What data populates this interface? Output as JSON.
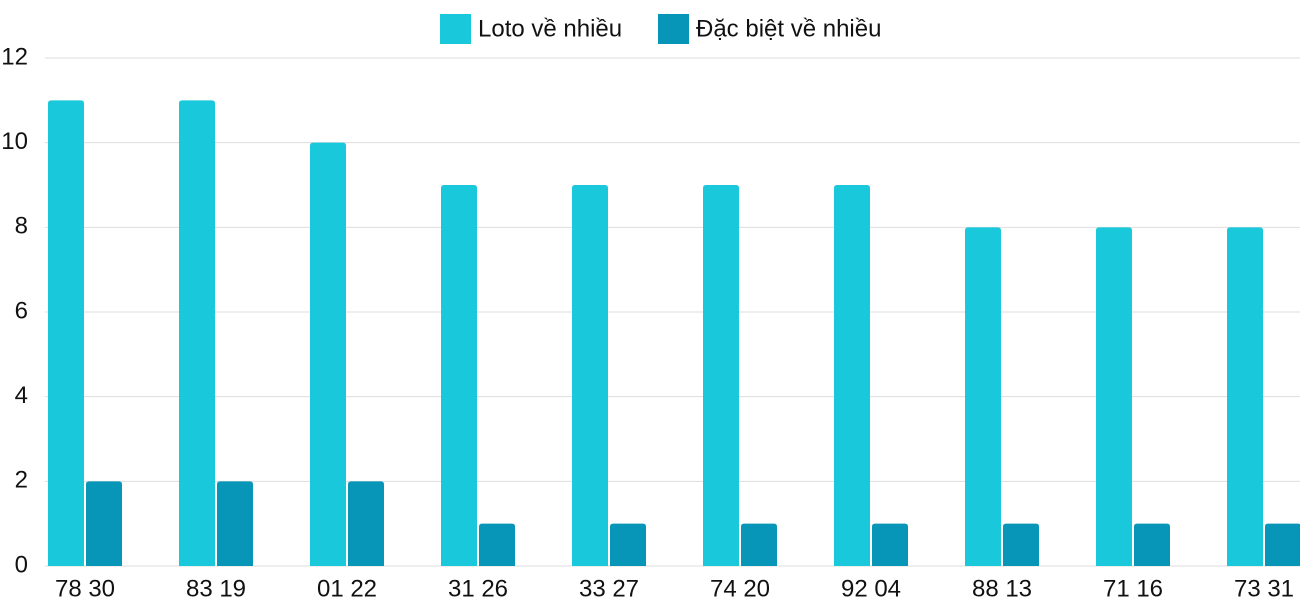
{
  "chart_data": {
    "type": "bar",
    "categories": [
      "78 30",
      "83 19",
      "01 22",
      "31 26",
      "33 27",
      "74 20",
      "92 04",
      "88 13",
      "71 16",
      "73 31"
    ],
    "series": [
      {
        "name": "Loto về nhiều",
        "color": "#1ac8db",
        "values": [
          11,
          11,
          10,
          9,
          9,
          9,
          9,
          8,
          8,
          8
        ]
      },
      {
        "name": "Đặc biệt về nhiều",
        "color": "#0795b8",
        "values": [
          2,
          2,
          2,
          1,
          1,
          1,
          1,
          1,
          1,
          1
        ]
      }
    ],
    "ylim": [
      0,
      12
    ],
    "yticks": [
      0,
      2,
      4,
      6,
      8,
      10,
      12
    ],
    "grid": true,
    "legend": "top"
  }
}
